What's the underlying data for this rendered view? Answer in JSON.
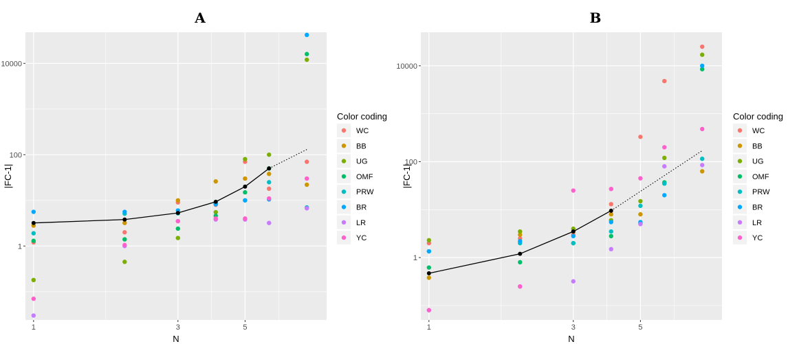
{
  "chart_data": [
    {
      "type": "scatter",
      "title": "A",
      "xlabel": "N",
      "ylabel": "|FC-1|",
      "log_x": true,
      "log_y": true,
      "xlim": [
        0.94,
        9.3
      ],
      "ylim": [
        0.024,
        48000
      ],
      "x_ticks": [
        1,
        3,
        5
      ],
      "x_tick_labels": [
        "1",
        "3",
        "5"
      ],
      "y_ticks": [
        1,
        100,
        10000
      ],
      "y_tick_labels": [
        "1",
        "100",
        "10000"
      ],
      "grid": true,
      "legend": {
        "title": "Color coding",
        "position": "right"
      },
      "series": [
        {
          "name": "WC",
          "color": "#F8766D",
          "x": [
            1,
            2,
            3,
            4,
            5,
            6,
            8
          ],
          "y": [
            1.2,
            2,
            9,
            8,
            70,
            18,
            70
          ]
        },
        {
          "name": "BB",
          "color": "#CD9600",
          "x": [
            1,
            2,
            3,
            4,
            5,
            6,
            8
          ],
          "y": [
            2.8,
            3.2,
            10,
            26,
            30,
            38,
            22
          ]
        },
        {
          "name": "UG",
          "color": "#7CAE00",
          "x": [
            1,
            2,
            3,
            4,
            5,
            6,
            8
          ],
          "y": [
            0.18,
            0.45,
            1.5,
            5.5,
            80,
            100,
            12000
          ]
        },
        {
          "name": "OMF",
          "color": "#00BE67",
          "x": [
            1,
            2,
            3,
            4,
            5,
            6,
            8
          ],
          "y": [
            1.3,
            1.4,
            2.4,
            4.6,
            15,
            50,
            16000
          ]
        },
        {
          "name": "PRW",
          "color": "#00BFC4",
          "x": [
            1,
            2,
            3,
            4,
            5,
            6,
            8
          ],
          "y": [
            1.9,
            5.1,
            5.2,
            8.5,
            10,
            25,
            7
          ]
        },
        {
          "name": "BR",
          "color": "#00A9FF",
          "x": [
            1,
            2,
            3,
            4,
            5,
            6,
            8
          ],
          "y": [
            5.6,
            5.6,
            6,
            8.2,
            10,
            10.5,
            42000
          ]
        },
        {
          "name": "LR",
          "color": "#C77CFF",
          "x": [
            1,
            2,
            3,
            4,
            5,
            6,
            8
          ],
          "y": [
            0.03,
            1,
            3.5,
            3.8,
            3.8,
            3.2,
            6.7
          ]
        },
        {
          "name": "YC",
          "color": "#FF61CC",
          "x": [
            1,
            2,
            3,
            4,
            5,
            6,
            8
          ],
          "y": [
            0.07,
            1.05,
            3.5,
            4,
            4,
            11,
            30
          ]
        }
      ],
      "trend": {
        "color": "#000000",
        "solid": {
          "x": [
            1,
            2,
            3,
            4,
            5,
            6
          ],
          "y": [
            3.2,
            3.8,
            5.3,
            9.3,
            20,
            50
          ]
        },
        "dotted": {
          "x": [
            6,
            8
          ],
          "y": [
            50,
            130
          ]
        }
      }
    },
    {
      "type": "scatter",
      "title": "B",
      "xlabel": "N",
      "ylabel": "|FC-1|",
      "log_x": true,
      "log_y": true,
      "xlim": [
        0.94,
        9.3
      ],
      "ylim": [
        0.05,
        50000
      ],
      "x_ticks": [
        1,
        3,
        5
      ],
      "x_tick_labels": [
        "1",
        "3",
        "5"
      ],
      "y_ticks": [
        1,
        100,
        10000
      ],
      "y_tick_labels": [
        "1",
        "100",
        "10000"
      ],
      "grid": true,
      "legend": {
        "title": "Color coding",
        "position": "right"
      },
      "series": [
        {
          "name": "WC",
          "color": "#F8766D",
          "x": [
            1,
            2,
            3,
            4,
            5,
            6,
            8
          ],
          "y": [
            2,
            2.5,
            3,
            13,
            330,
            4800,
            25000
          ]
        },
        {
          "name": "BB",
          "color": "#CD9600",
          "x": [
            1,
            2,
            3,
            4,
            5,
            6,
            8
          ],
          "y": [
            0.38,
            3,
            3.5,
            8,
            8,
            35,
            63
          ]
        },
        {
          "name": "UG",
          "color": "#7CAE00",
          "x": [
            1,
            2,
            3,
            4,
            5,
            6,
            8
          ],
          "y": [
            2.3,
            3.5,
            4,
            6,
            15,
            120,
            17000
          ]
        },
        {
          "name": "OMF",
          "color": "#00BE67",
          "x": [
            1,
            2,
            3,
            4,
            5,
            6,
            8
          ],
          "y": [
            0.62,
            0.8,
            2,
            2.8,
            5.2,
            37,
            8500
          ]
        },
        {
          "name": "PRW",
          "color": "#00BFC4",
          "x": [
            1,
            2,
            3,
            4,
            5,
            6,
            8
          ],
          "y": [
            1.35,
            2,
            2,
            3.5,
            12,
            35,
            115
          ]
        },
        {
          "name": "BR",
          "color": "#00A9FF",
          "x": [
            1,
            2,
            3,
            4,
            5,
            6,
            8
          ],
          "y": [
            1.35,
            2.2,
            2.8,
            5.5,
            5.5,
            20,
            10000
          ]
        },
        {
          "name": "LR",
          "color": "#C77CFF",
          "x": [
            1,
            2,
            3,
            4,
            5,
            6,
            8
          ],
          "y": [
            0.08,
            0.25,
            0.32,
            1.5,
            5,
            80,
            85
          ]
        },
        {
          "name": "YC",
          "color": "#FF61CC",
          "x": [
            1,
            2,
            3,
            4,
            5,
            6,
            8
          ],
          "y": [
            0.08,
            0.25,
            25,
            27,
            45,
            200,
            480
          ]
        }
      ],
      "trend": {
        "color": "#000000",
        "solid": {
          "x": [
            1,
            2,
            3,
            4
          ],
          "y": [
            0.47,
            1.2,
            3.5,
            9.5
          ]
        },
        "dotted": {
          "x": [
            4,
            8
          ],
          "y": [
            9.5,
            170
          ]
        }
      }
    }
  ]
}
